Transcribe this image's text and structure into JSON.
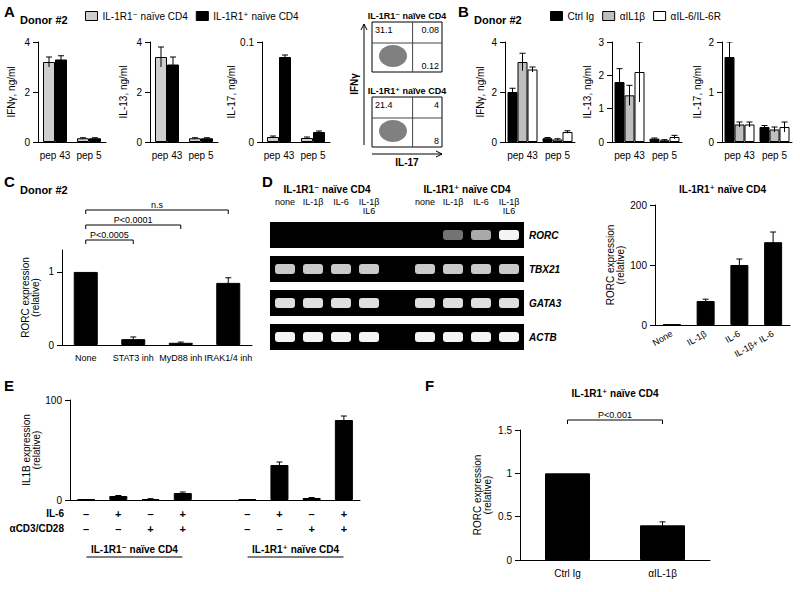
{
  "chart_data": [
    {
      "panel": "A",
      "header": "Donor #2",
      "series": [
        {
          "name": "IL-1R1⁻ naïve CD4",
          "color": "#cfcfcf"
        },
        {
          "name": "IL-1R1⁺ naïve CD4",
          "color": "#000000"
        }
      ],
      "charts": [
        {
          "type": "bar",
          "y_label": "IFNγ, ng/ml",
          "categories": [
            "pep 43",
            "pep 5"
          ],
          "values": [
            [
              3.2,
              0.15
            ],
            [
              3.3,
              0.15
            ]
          ],
          "errors": [
            [
              0.2,
              0.02
            ],
            [
              0.15,
              0.02
            ]
          ],
          "ylim": [
            0,
            4
          ],
          "yticks": [
            0,
            2,
            4
          ]
        },
        {
          "type": "bar",
          "y_label": "IL-13, ng/ml",
          "categories": [
            "pep 43",
            "pep 5"
          ],
          "values": [
            [
              3.4,
              0.15
            ],
            [
              3.1,
              0.15
            ]
          ],
          "errors": [
            [
              0.4,
              0.02
            ],
            [
              0.3,
              0.02
            ]
          ],
          "ylim": [
            0,
            4
          ],
          "yticks": [
            0,
            2,
            4
          ]
        },
        {
          "type": "bar",
          "y_label": "IL-17, ng/ml",
          "categories": [
            "pep 43",
            "pep 5"
          ],
          "values": [
            [
              0.005,
              0.004
            ],
            [
              0.085,
              0.01
            ]
          ],
          "errors": [
            [
              0.001,
              0.001
            ],
            [
              0.002,
              0.001
            ]
          ],
          "ylim": [
            0,
            0.1
          ],
          "yticks": [
            0,
            0.1
          ]
        },
        {
          "type": "flow",
          "x_label": "IL-17",
          "y_label": "IFNγ",
          "plots": [
            {
              "title": "IL-1R1⁻ naïve CD4",
              "quadrants": {
                "upper_left": 31.1,
                "upper_right": 0.08,
                "lower_right": 0.12
              }
            },
            {
              "title": "IL-1R1⁺ naïve CD4",
              "quadrants": {
                "upper_left": 21.4,
                "upper_right": 4,
                "lower_right": 8
              }
            }
          ]
        }
      ]
    },
    {
      "panel": "B",
      "header": "Donor #2",
      "series": [
        {
          "name": "Ctrl Ig",
          "color": "#000000"
        },
        {
          "name": "αIL1β",
          "color": "#bfbfbf"
        },
        {
          "name": "αIL-6/IL-6R",
          "color": "#ffffff"
        }
      ],
      "charts": [
        {
          "type": "bar",
          "y_label": "IFNγ, ng/ml",
          "categories": [
            "pep 43",
            "pep 5"
          ],
          "values": [
            [
              2.0,
              0.15
            ],
            [
              3.2,
              0.1
            ],
            [
              2.9,
              0.4
            ]
          ],
          "errors": [
            [
              0.15,
              0.03
            ],
            [
              0.35,
              0.03
            ],
            [
              0.1,
              0.05
            ]
          ],
          "ylim": [
            0,
            4
          ],
          "yticks": [
            0,
            2,
            4
          ]
        },
        {
          "type": "bar",
          "y_label": "IL-13, ng/ml",
          "categories": [
            "pep 43",
            "pep 5"
          ],
          "values": [
            [
              1.8,
              0.1
            ],
            [
              1.4,
              0.05
            ],
            [
              2.1,
              0.15
            ]
          ],
          "errors": [
            [
              0.4,
              0.02
            ],
            [
              0.3,
              0.02
            ],
            [
              0.9,
              0.05
            ]
          ],
          "ylim": [
            0,
            3
          ],
          "yticks": [
            0,
            1,
            2,
            3
          ]
        },
        {
          "type": "bar",
          "y_label": "IL-17, ng/ml",
          "categories": [
            "pep 43",
            "pep 5"
          ],
          "values": [
            [
              1.7,
              0.3
            ],
            [
              0.35,
              0.25
            ],
            [
              0.35,
              0.3
            ]
          ],
          "errors": [
            [
              0.3,
              0.03
            ],
            [
              0.05,
              0.05
            ],
            [
              0.05,
              0.1
            ]
          ],
          "ylim": [
            0,
            2
          ],
          "yticks": [
            0,
            1,
            2
          ]
        }
      ]
    },
    {
      "panel": "C",
      "header": "Donor #2",
      "charts": [
        {
          "type": "bar",
          "y_label": "RORC expression\n(relative)",
          "color": "#000000",
          "categories": [
            "None",
            "STAT3 inh",
            "MyD88 inh",
            "IRAK1/4 inh"
          ],
          "values": [
            1,
            0.08,
            0.03,
            0.85
          ],
          "errors": [
            0,
            0.03,
            0.01,
            0.07
          ],
          "ylim": [
            0,
            1.3
          ],
          "yticks": [
            0,
            1
          ],
          "comparisons": [
            {
              "between": [
                "None",
                "STAT3 inh"
              ],
              "label": "P<0.0005"
            },
            {
              "between": [
                "None",
                "MyD88 inh"
              ],
              "label": "P<0.0001"
            },
            {
              "between": [
                "None",
                "IRAK1/4 inh"
              ],
              "label": "n.s"
            }
          ]
        }
      ]
    },
    {
      "panel": "D",
      "charts": [
        {
          "type": "gel",
          "groups": [
            {
              "label": "IL-1R1⁻ naïve CD4",
              "lanes": [
                "none",
                "IL-1β",
                "IL-6",
                "IL-1β\nIL6"
              ]
            },
            {
              "label": "IL-1R1⁺ naïve CD4",
              "lanes": [
                "none",
                "IL-1β",
                "IL-6",
                "IL-1β\nIL6"
              ]
            }
          ],
          "rows": [
            {
              "name": "RORC",
              "intensity": [
                0,
                0,
                0,
                0,
                0,
                0.35,
                0.6,
                0.95
              ]
            },
            {
              "name": "TBX21",
              "intensity": [
                0.75,
                0.75,
                0.75,
                0.75,
                0.75,
                0.75,
                0.75,
                0.75
              ]
            },
            {
              "name": "GATA3",
              "intensity": [
                0.85,
                0.85,
                0.85,
                0.85,
                0.85,
                0.85,
                0.85,
                0.85
              ]
            },
            {
              "name": "ACTB",
              "intensity": [
                0.95,
                0.95,
                0.95,
                0.95,
                0.95,
                0.95,
                0.95,
                0.95
              ]
            }
          ]
        },
        {
          "type": "bar",
          "title": "IL-1R1⁺ naïve CD4",
          "y_label": "RORC expression\n(relative)",
          "color": "#000000",
          "categories": [
            "None",
            "IL-1β",
            "IL-6",
            "IL-1β+ IL-6"
          ],
          "values": [
            1,
            40,
            100,
            138
          ],
          "errors": [
            0,
            3,
            10,
            17
          ],
          "ylim": [
            0,
            200
          ],
          "yticks": [
            0,
            100,
            200
          ]
        }
      ]
    },
    {
      "panel": "E",
      "charts": [
        {
          "type": "bar",
          "y_label": "IL1B expression\n(relative)",
          "color": "#000000",
          "groups": [
            {
              "label": "IL-1R1⁻ naïve CD4",
              "values": [
                1,
                4,
                1,
                7
              ],
              "errors": [
                0,
                0.5,
                0.3,
                1
              ]
            },
            {
              "label": "IL-1R1⁺ naïve CD4",
              "values": [
                1,
                35,
                2,
                80
              ],
              "errors": [
                0,
                3,
                0.5,
                4
              ]
            }
          ],
          "conditions": [
            {
              "name": "IL-6",
              "marks": [
                "–",
                "+",
                "–",
                "+",
                "–",
                "+",
                "–",
                "+"
              ]
            },
            {
              "name": "αCD3/CD28",
              "marks": [
                "–",
                "–",
                "+",
                "+",
                "–",
                "–",
                "+",
                "+"
              ]
            }
          ],
          "ylim": [
            0,
            100
          ],
          "yticks": [
            0,
            100
          ]
        }
      ]
    },
    {
      "panel": "F",
      "charts": [
        {
          "type": "bar",
          "title": "IL-1R1⁺ naïve CD4",
          "y_label": "RORC expression\n(relative)",
          "color": "#000000",
          "categories": [
            "Ctrl Ig",
            "αIL-1β"
          ],
          "values": [
            1,
            0.4
          ],
          "errors": [
            0,
            0.04
          ],
          "ylim": [
            0,
            1.5
          ],
          "yticks": [
            0,
            0.5,
            1,
            1.5
          ],
          "comparisons": [
            {
              "between": [
                "Ctrl Ig",
                "αIL-1β"
              ],
              "label": "P<0.001"
            }
          ]
        }
      ]
    }
  ]
}
